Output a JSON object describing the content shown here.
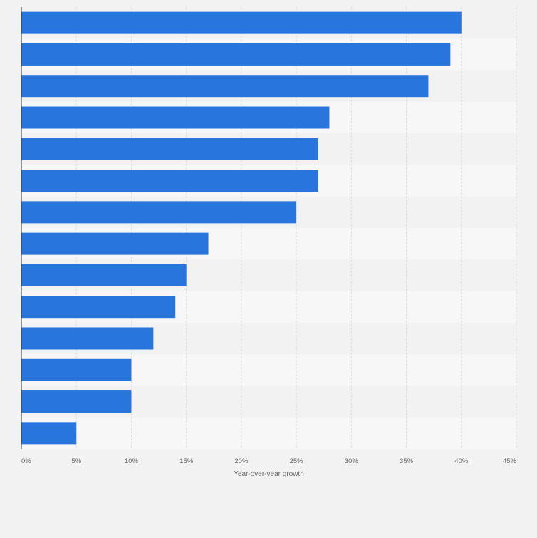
{
  "chart_data": {
    "type": "bar",
    "orientation": "horizontal",
    "categories": [
      "",
      "",
      "",
      "",
      "",
      "",
      "",
      "",
      "",
      "",
      "",
      "",
      "",
      ""
    ],
    "values": [
      40,
      39,
      37,
      28,
      27,
      27,
      25,
      17,
      15,
      14,
      12,
      10,
      10,
      5
    ],
    "xlabel": "Year-over-year growth",
    "ylabel": "",
    "xlim": [
      0,
      45
    ],
    "ticks": [
      {
        "value": 0,
        "label": "0%"
      },
      {
        "value": 5,
        "label": "5%"
      },
      {
        "value": 10,
        "label": "10%"
      },
      {
        "value": 15,
        "label": "15%"
      },
      {
        "value": 20,
        "label": "20%"
      },
      {
        "value": 25,
        "label": "25%"
      },
      {
        "value": 30,
        "label": "30%"
      },
      {
        "value": 35,
        "label": "35%"
      },
      {
        "value": 40,
        "label": "40%"
      },
      {
        "value": 45,
        "label": "45%"
      }
    ],
    "grid": true,
    "colors": {
      "bar": "#2876dd",
      "background": "#f2f2f2",
      "band_light": "#f7f7f7",
      "band_dark": "#f2f2f2",
      "grid": "#dddddd",
      "axis": "#333333",
      "tick_text": "#666666"
    }
  }
}
